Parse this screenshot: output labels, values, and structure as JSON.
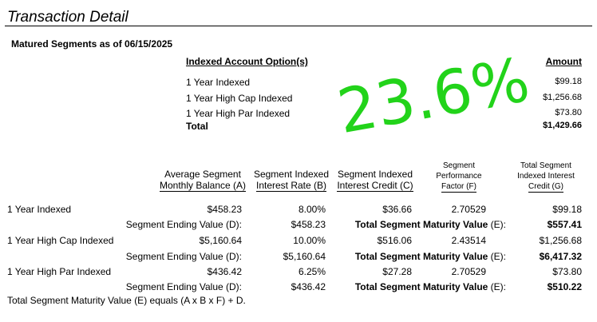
{
  "title": "Transaction Detail",
  "subtitle": "Matured Segments as of 06/15/2025",
  "summary": {
    "col_option": "Indexed Account Option(s)",
    "col_amount": "Amount",
    "rows": [
      {
        "label": "1 Year Indexed",
        "amount": "$99.18"
      },
      {
        "label": "1 Year High Cap Indexed",
        "amount": "$1,256.68"
      },
      {
        "label": "1 Year High Par Indexed",
        "amount": "$73.80"
      }
    ],
    "total_label": "Total",
    "total_amount": "$1,429.66"
  },
  "handwritten_note": "23.6%",
  "detail": {
    "headers": {
      "avg_balance_1": "Average Segment",
      "avg_balance_2": "Monthly Balance (A)",
      "interest_rate_1": "Segment Indexed",
      "interest_rate_2": "Interest Rate (B)",
      "interest_credit_1": "Segment Indexed",
      "interest_credit_2": "Interest Credit (C)",
      "perf_factor_1": "Segment",
      "perf_factor_2": "Performance",
      "perf_factor_3": "Factor (F)",
      "total_credit_1": "Total Segment",
      "total_credit_2": "Indexed Interest",
      "total_credit_3": "Credit (G)"
    },
    "ending_value_label": "Segment Ending Value (D):",
    "maturity_value_label_bold": "Total Segment Maturity Value",
    "maturity_value_label_suffix": " (E):",
    "segments": [
      {
        "name": "1 Year Indexed",
        "avg_balance": "$458.23",
        "rate": "8.00%",
        "credit": "$36.66",
        "factor": "2.70529",
        "total_credit": "$99.18",
        "ending_balance": "$458.23",
        "maturity_value": "$557.41"
      },
      {
        "name": "1 Year High Cap Indexed",
        "avg_balance": "$5,160.64",
        "rate": "10.00%",
        "credit": "$516.06",
        "factor": "2.43514",
        "total_credit": "$1,256.68",
        "ending_balance": "$5,160.64",
        "maturity_value": "$6,417.32"
      },
      {
        "name": "1 Year High Par Indexed",
        "avg_balance": "$436.42",
        "rate": "6.25%",
        "credit": "$27.28",
        "factor": "2.70529",
        "total_credit": "$73.80",
        "ending_balance": "$436.42",
        "maturity_value": "$510.22"
      }
    ],
    "footnote": "Total Segment Maturity Value (E) equals (A x B x F) + D."
  },
  "colors": {
    "ink": "#000000",
    "handwriting": "#22d31a"
  }
}
